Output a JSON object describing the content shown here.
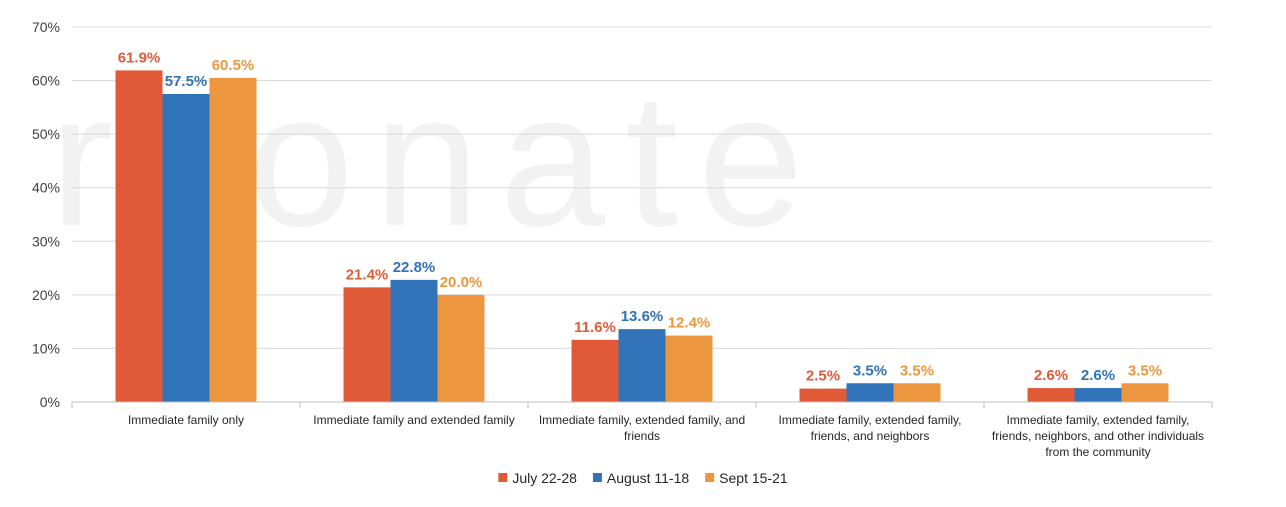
{
  "chart_data": {
    "type": "bar",
    "title": "",
    "xlabel": "",
    "ylabel": "",
    "ylim": [
      0,
      70
    ],
    "yticks": [
      0,
      10,
      20,
      30,
      40,
      50,
      60,
      70
    ],
    "ytick_labels": [
      "0%",
      "10%",
      "20%",
      "30%",
      "40%",
      "50%",
      "60%",
      "70%"
    ],
    "grid": true,
    "legend_position": "bottom-center",
    "categories": [
      [
        "Immediate family only"
      ],
      [
        "Immediate family and extended family"
      ],
      [
        "Immediate family, extended family, and",
        "friends"
      ],
      [
        "Immediate family, extended family,",
        "friends, and neighbors"
      ],
      [
        "Immediate family, extended family,",
        "friends, neighbors, and other individuals",
        "from the community"
      ]
    ],
    "series": [
      {
        "name": "July 22-28",
        "color": "#e05a38",
        "values": [
          61.9,
          21.4,
          11.6,
          2.5,
          2.6
        ],
        "labels": [
          "61.9%",
          "21.4%",
          "11.6%",
          "2.5%",
          "2.6%"
        ]
      },
      {
        "name": "August 11-18",
        "color": "#3173b8",
        "values": [
          57.5,
          22.8,
          13.6,
          3.5,
          2.6
        ],
        "labels": [
          "57.5%",
          "22.8%",
          "13.6%",
          "3.5%",
          "2.6%"
        ]
      },
      {
        "name": "Sept 15-21",
        "color": "#ec973f",
        "values": [
          60.5,
          20.0,
          12.4,
          3.5,
          3.5
        ],
        "labels": [
          "60.5%",
          "20.0%",
          "12.4%",
          "3.5%",
          "3.5%"
        ]
      }
    ],
    "watermark": "rsonate"
  }
}
